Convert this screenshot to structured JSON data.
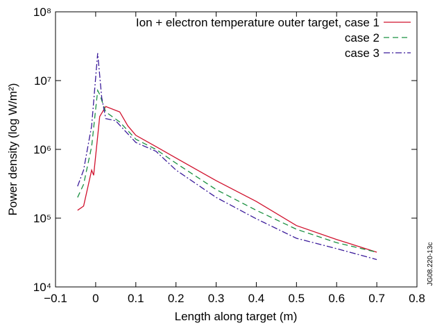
{
  "chart_data": {
    "type": "line",
    "y_scale": "log",
    "x_label": "Length along target (m)",
    "y_label": "Power density (log W/m²)",
    "annotation": "JG08.220-13c",
    "legend": "upper right",
    "xlim": [
      -0.1,
      0.8
    ],
    "ylim": [
      10000,
      100000000
    ],
    "xticks": [
      {
        "value": -0.1,
        "label": "−0.1"
      },
      0,
      0.1,
      0.2,
      0.3,
      0.4,
      0.5,
      0.6,
      0.7,
      0.8
    ],
    "yticks": [
      {
        "value": 10000,
        "label": "10⁴"
      },
      {
        "value": 100000,
        "label": "10⁵"
      },
      {
        "value": 1000000,
        "label": "10⁶"
      },
      {
        "value": 10000000,
        "label": "10⁷"
      },
      {
        "value": 100000000,
        "label": "10⁸"
      }
    ],
    "series": [
      {
        "name": "Ion + electron temperature outer target, case 1",
        "color": "#d0102c",
        "dash": "none",
        "x": [
          -0.045,
          -0.03,
          -0.01,
          -0.005,
          0.01,
          0.025,
          0.06,
          0.08,
          0.1,
          0.15,
          0.2,
          0.3,
          0.4,
          0.5,
          0.6,
          0.7
        ],
        "values": [
          130000,
          150000,
          500000,
          420000,
          3000000,
          4200000,
          3500000,
          2200000,
          1600000,
          1100000,
          750000,
          350000,
          175000,
          78000,
          49000,
          32000
        ]
      },
      {
        "name": "case 2",
        "color": "#1a9040",
        "dash": "8 5",
        "x": [
          -0.045,
          -0.03,
          -0.01,
          0.005,
          0.01,
          0.025,
          0.06,
          0.1,
          0.15,
          0.2,
          0.3,
          0.4,
          0.5,
          0.6,
          0.7
        ],
        "values": [
          200000,
          310000,
          1100000,
          7200000,
          6300000,
          3500000,
          2500000,
          1400000,
          1000000,
          630000,
          260000,
          130000,
          69000,
          44000,
          32000
        ]
      },
      {
        "name": "case 3",
        "color": "#3a1a9a",
        "dash": "9 3 2 3",
        "x": [
          -0.045,
          -0.03,
          -0.01,
          0.005,
          0.015,
          0.025,
          0.05,
          0.1,
          0.15,
          0.2,
          0.3,
          0.4,
          0.5,
          0.6,
          0.7
        ],
        "values": [
          290000,
          500000,
          2200000,
          25000000,
          5700000,
          2800000,
          2600000,
          1260000,
          940000,
          500000,
          200000,
          98000,
          51000,
          36000,
          25000
        ]
      }
    ]
  }
}
